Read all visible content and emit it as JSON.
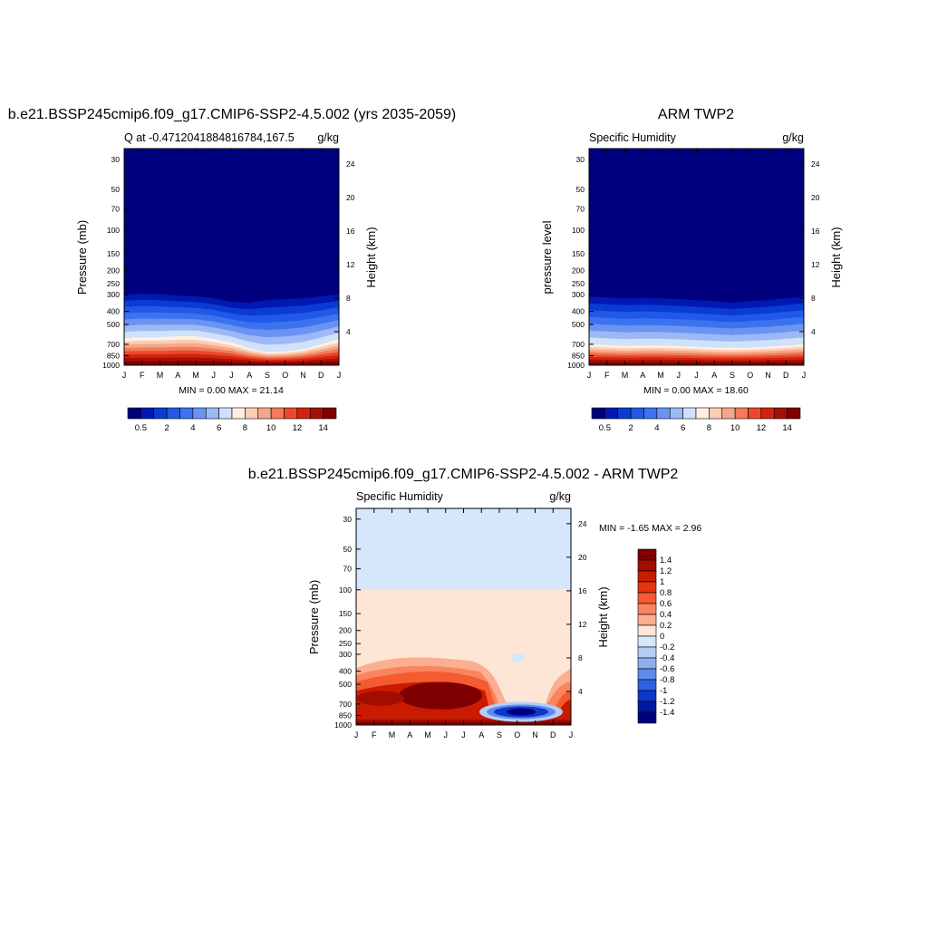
{
  "panels": {
    "model": {
      "title": "b.e21.BSSP245cmip6.f09_g17.CMIP6-SSP2-4.5.002 (yrs 2035-2059)",
      "left_string": "Q at -0.4712041884816784,167.5",
      "right_string": "g/kg",
      "ylabel_left": "Pressure (mb)",
      "ylabel_right": "Height (km)",
      "minmax": "MIN =   0.00 MAX =  21.14"
    },
    "obs": {
      "title": "ARM TWP2",
      "left_string": "Specific Humidity",
      "right_string": "g/kg",
      "ylabel_left": "pressure level",
      "ylabel_right": "Height (km)",
      "minmax": "MIN =   0.00 MAX =  18.60"
    },
    "diff": {
      "title": "b.e21.BSSP245cmip6.f09_g17.CMIP6-SSP2-4.5.002 - ARM TWP2",
      "left_string": "Specific Humidity",
      "right_string": "g/kg",
      "ylabel_left": "Pressure (mb)",
      "ylabel_right": "Height (km)",
      "minmax": "MIN =  -1.65 MAX =   2.96"
    }
  },
  "chart_data": [
    {
      "type": "heatmap",
      "panel": "model",
      "title": "b.e21.BSSP245cmip6.f09_g17.CMIP6-SSP2-4.5.002 (yrs 2035-2059)",
      "xlabel": "",
      "ylabel": "Pressure (mb)",
      "y2label": "Height (km)",
      "units": "g/kg",
      "x_ticks": [
        "J",
        "F",
        "M",
        "A",
        "M",
        "J",
        "J",
        "A",
        "S",
        "O",
        "N",
        "D",
        "J"
      ],
      "y_ticks": [
        30,
        50,
        70,
        100,
        150,
        200,
        250,
        300,
        400,
        500,
        700,
        850,
        1000
      ],
      "y2_ticks": [
        4,
        8,
        12,
        16,
        20,
        24
      ],
      "y_scale": "log",
      "ylim": [
        1000,
        25
      ],
      "min": 0.0,
      "max": 21.14,
      "moisture_top_mb": [
        300,
        295,
        298,
        305,
        310,
        320,
        340,
        345,
        330,
        325,
        320,
        310,
        300
      ],
      "moist_core_top_mb": [
        630,
        620,
        620,
        610,
        610,
        640,
        680,
        750,
        800,
        790,
        760,
        700,
        640
      ],
      "colorbar_labels": [
        "0.5",
        "2",
        "4",
        "6",
        "8",
        "10",
        "12",
        "14"
      ]
    },
    {
      "type": "heatmap",
      "panel": "obs",
      "title": "ARM TWP2",
      "xlabel": "",
      "ylabel": "pressure level",
      "y2label": "Height (km)",
      "units": "g/kg",
      "x_ticks": [
        "J",
        "F",
        "M",
        "A",
        "M",
        "J",
        "J",
        "A",
        "S",
        "O",
        "N",
        "D",
        "J"
      ],
      "y_ticks": [
        30,
        50,
        70,
        100,
        150,
        200,
        250,
        300,
        400,
        500,
        700,
        850,
        1000
      ],
      "y2_ticks": [
        4,
        8,
        12,
        16,
        20,
        24
      ],
      "y_scale": "log",
      "ylim": [
        1000,
        25
      ],
      "min": 0.0,
      "max": 18.6,
      "moisture_top_mb": [
        310,
        315,
        320,
        318,
        320,
        325,
        330,
        335,
        345,
        335,
        330,
        320,
        310
      ],
      "moist_core_top_mb": [
        700,
        710,
        720,
        715,
        715,
        720,
        730,
        740,
        745,
        740,
        730,
        715,
        700
      ],
      "colorbar_labels": [
        "0.5",
        "2",
        "4",
        "6",
        "8",
        "10",
        "12",
        "14"
      ]
    },
    {
      "type": "heatmap",
      "panel": "diff",
      "title": "b.e21.BSSP245cmip6.f09_g17.CMIP6-SSP2-4.5.002 - ARM TWP2",
      "xlabel": "",
      "ylabel": "Pressure (mb)",
      "y2label": "Height (km)",
      "units": "g/kg",
      "x_ticks": [
        "J",
        "F",
        "M",
        "A",
        "M",
        "J",
        "J",
        "A",
        "S",
        "O",
        "N",
        "D",
        "J"
      ],
      "y_ticks": [
        30,
        50,
        70,
        100,
        150,
        200,
        250,
        300,
        400,
        500,
        700,
        850,
        1000
      ],
      "y2_ticks": [
        4,
        8,
        12,
        16,
        20,
        24
      ],
      "y_scale": "log",
      "ylim": [
        1000,
        25
      ],
      "min": -1.65,
      "max": 2.96,
      "upper_boundary_mb": 100,
      "upper_value_range": "0 to -0.2",
      "mid_value_range": "0 to 0.2",
      "positive_anomaly_max_region": "Apr-Jul, 500-700 mb",
      "negative_anomaly_region": "Sep-Nov, 750-850 mb",
      "colorbar_labels": [
        "1.4",
        "1.2",
        "1",
        "0.8",
        "0.6",
        "0.4",
        "0.2",
        "0",
        "-0.2",
        "-0.4",
        "-0.6",
        "-0.8",
        "-1",
        "-1.2",
        "-1.4"
      ]
    }
  ],
  "colors": {
    "seq": [
      "#00007f",
      "#0019b0",
      "#0a3bd3",
      "#2058e8",
      "#3b73ef",
      "#6a93f2",
      "#9cb8f5",
      "#d0e1fa",
      "#fff0e3",
      "#fbcdb4",
      "#f6a788",
      "#f17b5b",
      "#ea4a2c",
      "#d42210",
      "#a51005",
      "#7e0000"
    ],
    "div": [
      "#7e0000",
      "#a30c00",
      "#c91b00",
      "#e63410",
      "#f55b30",
      "#f98460",
      "#fbae90",
      "#fde6d6",
      "#d6e6fb",
      "#b5cdf6",
      "#8fb0f0",
      "#5f8bec",
      "#2f62e3",
      "#0b38c9",
      "#001a9e",
      "#00007f"
    ]
  }
}
